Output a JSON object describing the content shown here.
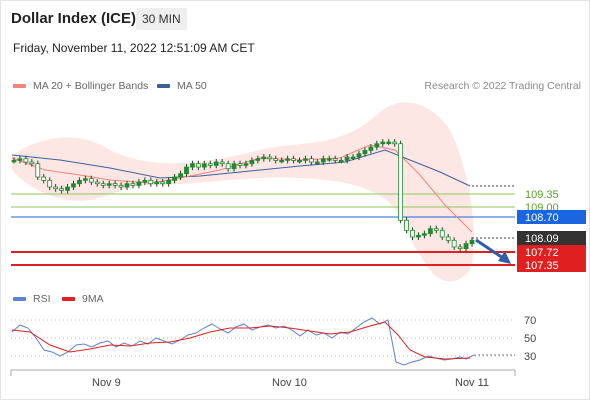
{
  "header": {
    "instrument": "Dollar Index (ICE)",
    "timeframe": "30 MIN",
    "datetime": "Friday, November 11, 2022 12:51:09 AM CET",
    "credit": "Research © 2022 Trading Central"
  },
  "legend": {
    "ma20": "MA 20 + Bollinger Bands",
    "ma50": "MA 50",
    "rsi": "RSI",
    "rsi_ma": "9MA"
  },
  "colors": {
    "ma20": "#f3847b",
    "ma50": "#3c5f9e",
    "bollinger_fill": "#fde3e1",
    "candle": "#1f8a2e",
    "support_blue": "#1a66e0",
    "level_green": "#8fc45a",
    "price_tag": "#333333",
    "red_level": "#e02020",
    "rsi": "#5a83d8",
    "rsi_ma": "#e02020",
    "arrow": "#2f5da8"
  },
  "chart_data": [
    {
      "type": "candlestick",
      "title": "Dollar Index (ICE)",
      "x_labels": [
        "Nov 9",
        "Nov 10",
        "Nov 11"
      ],
      "levels": [
        {
          "value": "109.35",
          "style": "green-line"
        },
        {
          "value": "109.00",
          "style": "green-line"
        },
        {
          "value": "108.70",
          "style": "blue-tag"
        },
        {
          "value": "108.09",
          "style": "dark-tag"
        },
        {
          "value": "107.72",
          "style": "red-tag"
        },
        {
          "value": "107.35",
          "style": "red-tag"
        }
      ],
      "ylim": [
        107.0,
        111.0
      ],
      "closes": [
        110.4,
        110.45,
        110.35,
        110.3,
        109.9,
        109.8,
        109.6,
        109.55,
        109.5,
        109.6,
        109.7,
        109.8,
        109.85,
        109.75,
        109.7,
        109.65,
        109.7,
        109.65,
        109.6,
        109.7,
        109.65,
        109.75,
        109.8,
        109.7,
        109.75,
        109.7,
        109.8,
        109.9,
        110.0,
        110.2,
        110.3,
        110.2,
        110.3,
        110.25,
        110.35,
        110.3,
        110.15,
        110.3,
        110.25,
        110.3,
        110.4,
        110.45,
        110.5,
        110.45,
        110.4,
        110.4,
        110.45,
        110.4,
        110.4,
        110.45,
        110.35,
        110.35,
        110.45,
        110.45,
        110.4,
        110.4,
        110.5,
        110.5,
        110.6,
        110.7,
        110.8,
        110.9,
        110.95,
        110.95,
        110.9,
        108.6,
        108.3,
        108.1,
        108.15,
        108.2,
        108.35,
        108.3,
        108.1,
        108.0,
        107.8,
        107.75,
        107.9,
        108.0
      ],
      "forecast": {
        "direction": "down",
        "target": "107.35"
      }
    },
    {
      "type": "line",
      "title": "RSI",
      "series": [
        {
          "name": "RSI"
        },
        {
          "name": "9MA"
        }
      ],
      "y_ticks": [
        "70",
        "50",
        "30"
      ],
      "ylim": [
        20,
        80
      ]
    }
  ]
}
